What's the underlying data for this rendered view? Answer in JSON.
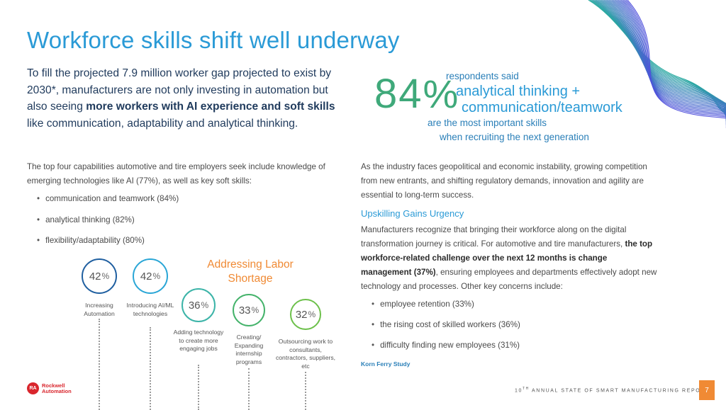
{
  "title": "Workforce skills shift well underway",
  "intro": {
    "pre": "To fill the projected 7.9 million worker gap projected to exist by 2030*, manufacturers are not only investing in automation but also seeing ",
    "bold": "more workers with AI experience and soft skills",
    "post": " like communication, adaptability and analytical thinking."
  },
  "left_paragraph": "The top four capabilities automotive and tire employers seek include knowledge of emerging technologies like AI (77%), as well as key soft skills:",
  "left_bullets": [
    "communication and teamwork (84%)",
    "analytical thinking (82%)",
    "flexibility/adaptability (80%)"
  ],
  "stat": {
    "value": "84",
    "unit": "%",
    "line1": "respondents said",
    "line2": "analytical thinking +",
    "line3": "communication/teamwork",
    "line4": "are the most important skills",
    "line5": "when recruiting the next generation"
  },
  "right_paragraph": "As the industry faces geopolitical and economic instability, growing competition from new entrants, and shifting regulatory demands, innovation and agility are essential to long-term success.",
  "subhead": "Upskilling Gains Urgency",
  "right_paragraph2": {
    "pre": "Manufacturers recognize that bringing their workforce along on the digital transformation journey is critical. For automotive and tire manufacturers, ",
    "bold": "the top workforce-related challenge over the next 12 months is change management (37%)",
    "post": ", ensuring employees and departments effectively adopt new technology and processes. Other key concerns include:"
  },
  "right_bullets": [
    "employee retention (33%)",
    "the rising cost of skilled workers (36%)",
    "difficulty finding new employees (31%)"
  ],
  "source": "Korn Ferry Study",
  "chart_data": {
    "type": "bubble-timeline",
    "title": "Addressing Labor Shortage",
    "unit": "%",
    "items": [
      {
        "value": 42,
        "label": "Increasing Automation",
        "color": "#1f5fa0"
      },
      {
        "value": 42,
        "label": "Introducing AI/ML technologies",
        "color": "#2aa6d6"
      },
      {
        "value": 36,
        "label": "Adding technology to create more engaging jobs",
        "color": "#3cb4a8"
      },
      {
        "value": 33,
        "label": "Creating/ Expanding internship programs",
        "color": "#45b36b"
      },
      {
        "value": 32,
        "label": "Outsourcing work to consultants, contractors, suppliers, etc",
        "color": "#6cc04a"
      }
    ]
  },
  "logo": {
    "badge": "RA",
    "line1": "Rockwell",
    "line2": "Automation"
  },
  "footer": {
    "ordinal": "10",
    "suffix": "TH",
    "text": " ANNUAL STATE OF SMART MANUFACTURING REPORT"
  },
  "page_number": "7"
}
